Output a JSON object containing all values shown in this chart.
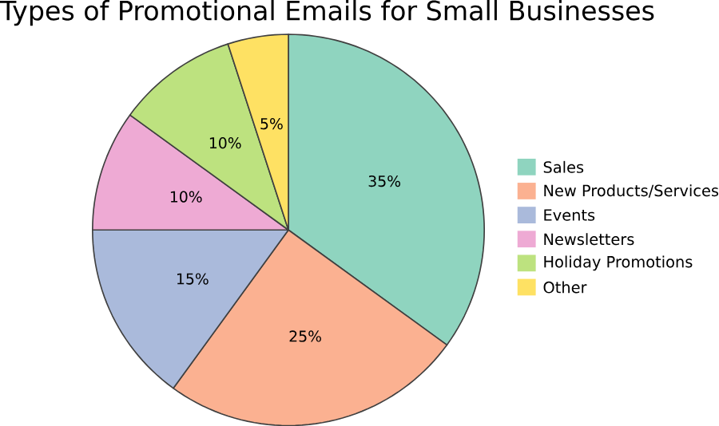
{
  "chart_data": {
    "type": "pie",
    "title": "Types of Promotional Emails for Small Businesses",
    "categories": [
      "Sales",
      "New Products/Services",
      "Events",
      "Newsletters",
      "Holiday Promotions",
      "Other"
    ],
    "values": [
      35,
      25,
      15,
      10,
      10,
      5
    ],
    "value_labels": [
      "35%",
      "25%",
      "15%",
      "10%",
      "10%",
      "5%"
    ],
    "colors": [
      "#8fd4bf",
      "#fbb191",
      "#aabadb",
      "#eeaad4",
      "#bde27f",
      "#fee163"
    ],
    "legend": "right"
  }
}
